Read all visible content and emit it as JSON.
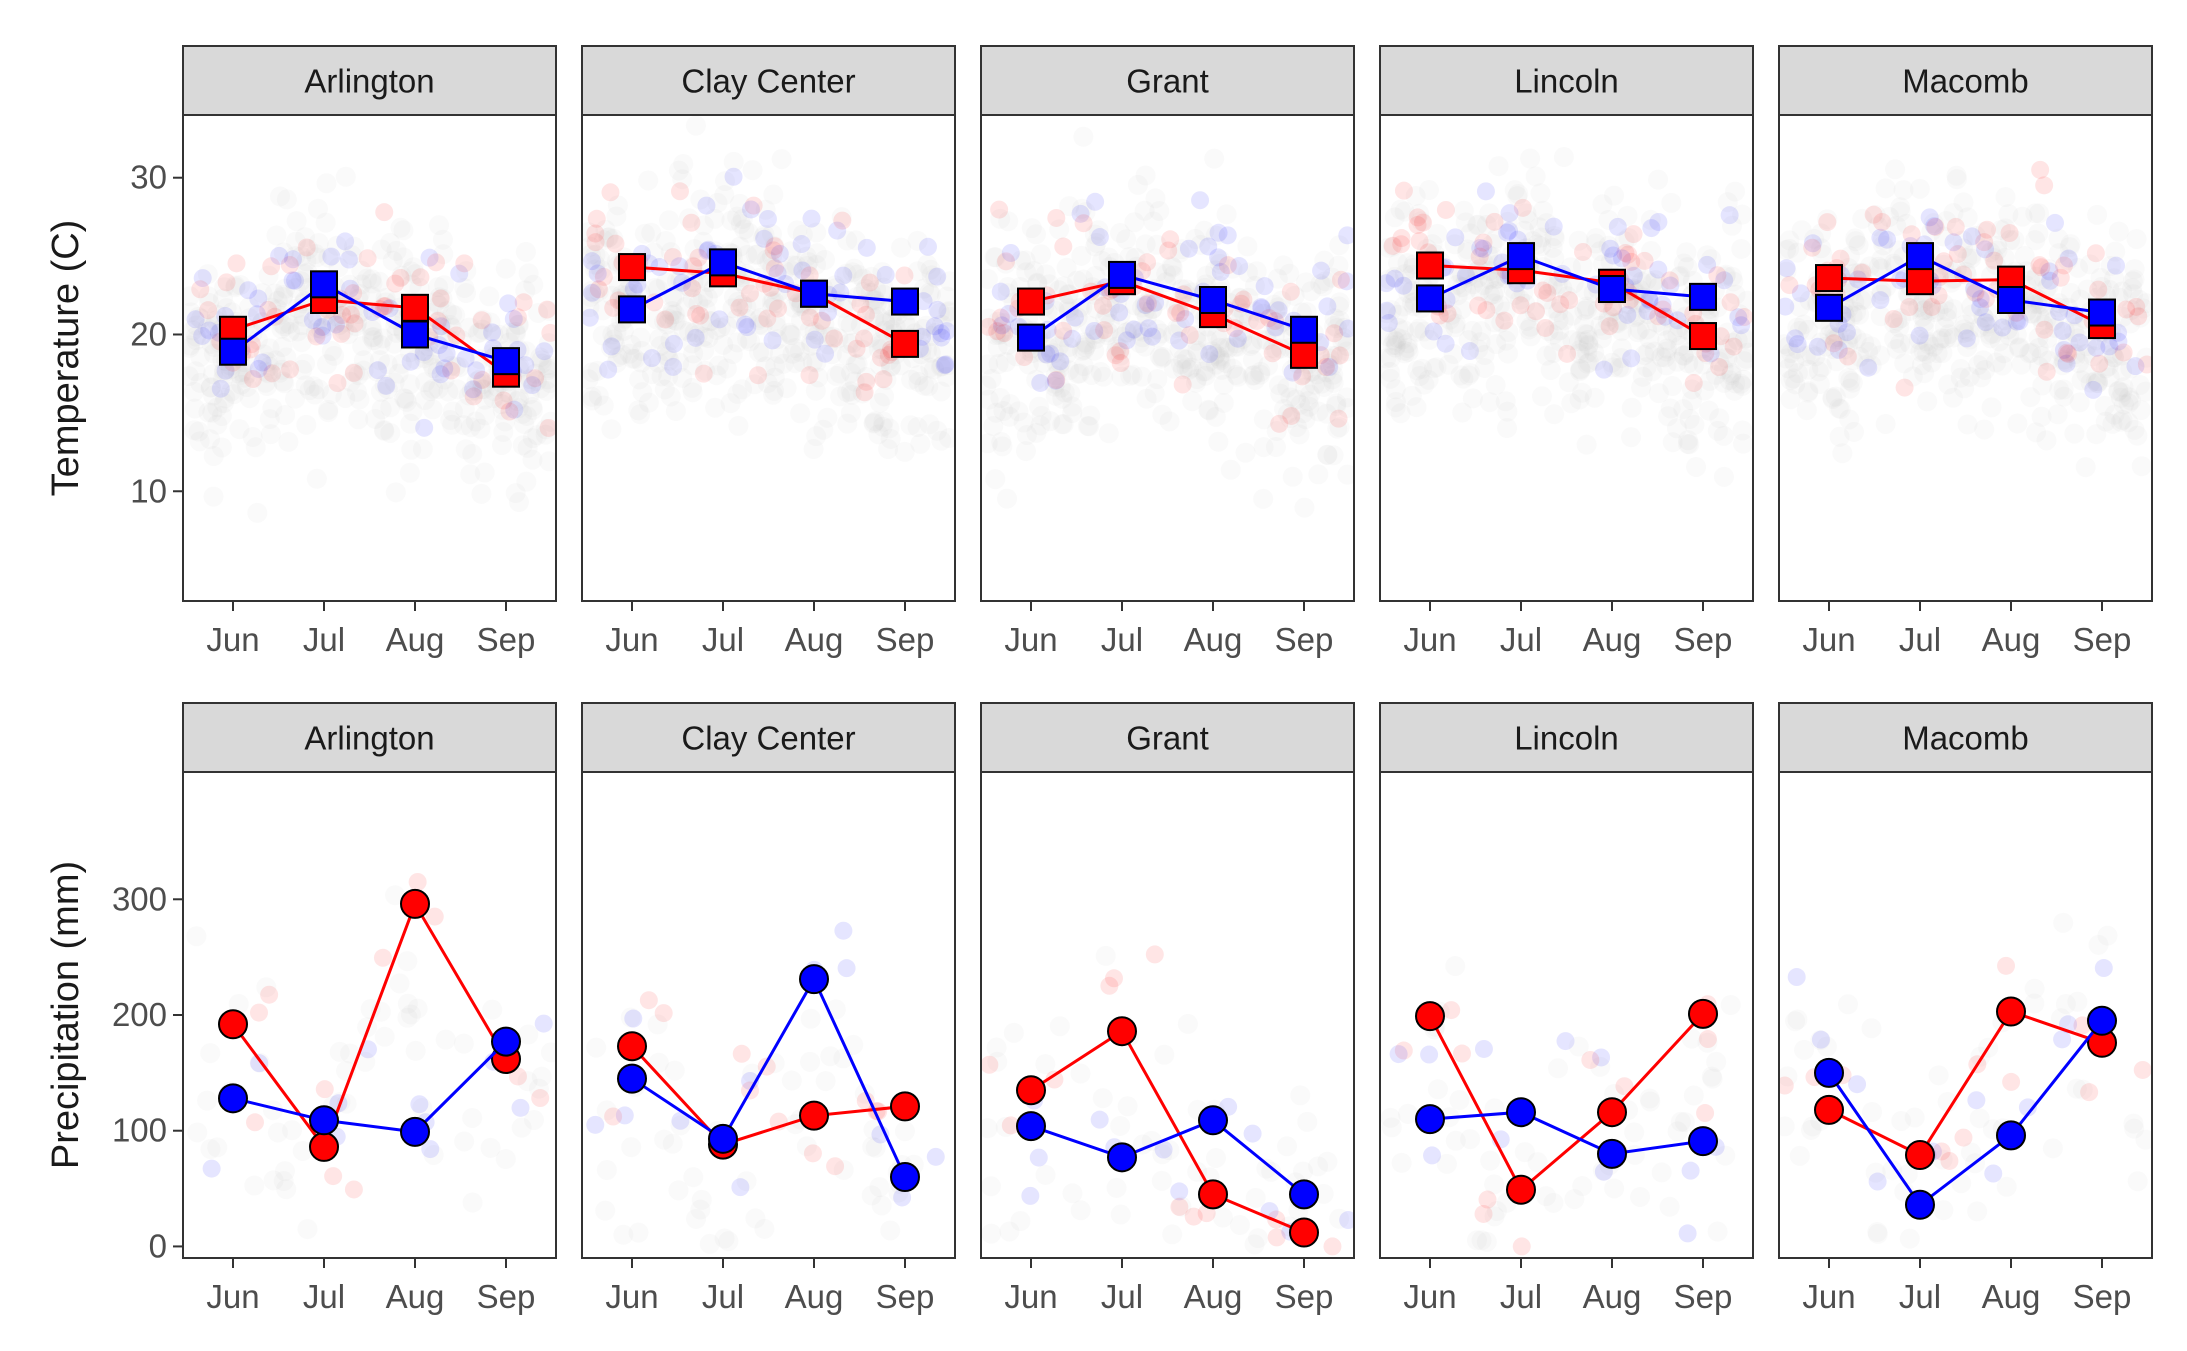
{
  "chart_data": [
    {
      "type": "line",
      "ylabel": "Temperature (C)",
      "ylim": [
        3,
        34
      ],
      "yticks": [
        10,
        20,
        30
      ],
      "categories": [
        "Jun",
        "Jul",
        "Aug",
        "Sep"
      ],
      "marker": "square",
      "grid": false,
      "facets": [
        {
          "name": "Arlington",
          "series": [
            {
              "color": "#ff0000",
              "values": [
                20.3,
                22.2,
                21.7,
                17.5
              ]
            },
            {
              "color": "#0000ff",
              "values": [
                18.9,
                23.2,
                20.0,
                18.3
              ]
            }
          ]
        },
        {
          "name": "Clay Center",
          "series": [
            {
              "color": "#ff0000",
              "values": [
                24.3,
                23.9,
                22.6,
                19.4
              ]
            },
            {
              "color": "#0000ff",
              "values": [
                21.6,
                24.6,
                22.6,
                22.1
              ]
            }
          ]
        },
        {
          "name": "Grant",
          "series": [
            {
              "color": "#ff0000",
              "values": [
                22.1,
                23.4,
                21.3,
                18.7
              ]
            },
            {
              "color": "#0000ff",
              "values": [
                19.8,
                23.8,
                22.2,
                20.3
              ]
            }
          ]
        },
        {
          "name": "Lincoln",
          "series": [
            {
              "color": "#ff0000",
              "values": [
                24.4,
                24.1,
                23.3,
                19.9
              ]
            },
            {
              "color": "#0000ff",
              "values": [
                22.3,
                25.0,
                22.9,
                22.4
              ]
            }
          ]
        },
        {
          "name": "Macomb",
          "series": [
            {
              "color": "#ff0000",
              "values": [
                23.6,
                23.4,
                23.5,
                20.6
              ]
            },
            {
              "color": "#0000ff",
              "values": [
                21.7,
                25.0,
                22.2,
                21.4
              ]
            }
          ]
        }
      ]
    },
    {
      "type": "line",
      "ylabel": "Precipitation (mm)",
      "ylim": [
        -10,
        410
      ],
      "yticks": [
        0,
        100,
        200,
        300
      ],
      "categories": [
        "Jun",
        "Jul",
        "Aug",
        "Sep"
      ],
      "marker": "circle",
      "grid": false,
      "facets": [
        {
          "name": "Arlington",
          "series": [
            {
              "color": "#ff0000",
              "values": [
                192,
                86,
                296,
                162
              ]
            },
            {
              "color": "#0000ff",
              "values": [
                128,
                109,
                99,
                177
              ]
            }
          ]
        },
        {
          "name": "Clay Center",
          "series": [
            {
              "color": "#ff0000",
              "values": [
                173,
                88,
                113,
                121
              ]
            },
            {
              "color": "#0000ff",
              "values": [
                145,
                93,
                231,
                60
              ]
            }
          ]
        },
        {
          "name": "Grant",
          "series": [
            {
              "color": "#ff0000",
              "values": [
                135,
                186,
                45,
                12
              ]
            },
            {
              "color": "#0000ff",
              "values": [
                104,
                77,
                109,
                45
              ]
            }
          ]
        },
        {
          "name": "Lincoln",
          "series": [
            {
              "color": "#ff0000",
              "values": [
                199,
                49,
                116,
                201
              ]
            },
            {
              "color": "#0000ff",
              "values": [
                110,
                116,
                80,
                91
              ]
            }
          ]
        },
        {
          "name": "Macomb",
          "series": [
            {
              "color": "#ff0000",
              "values": [
                118,
                79,
                203,
                176
              ]
            },
            {
              "color": "#0000ff",
              "values": [
                150,
                36,
                96,
                195
              ]
            }
          ]
        }
      ]
    }
  ]
}
